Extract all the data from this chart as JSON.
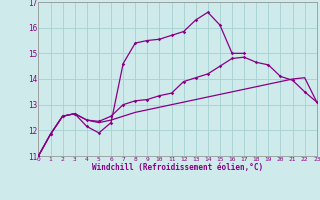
{
  "xlabel": "Windchill (Refroidissement éolien,°C)",
  "background_color": "#ceeaea",
  "grid_color": "#aad4d4",
  "line_color": "#880088",
  "x_values": [
    0,
    1,
    2,
    3,
    4,
    5,
    6,
    7,
    8,
    9,
    10,
    11,
    12,
    13,
    14,
    15,
    16,
    17,
    18,
    19,
    20,
    21,
    22,
    23
  ],
  "line_bottom": [
    11.0,
    11.85,
    12.55,
    12.65,
    12.4,
    12.3,
    12.4,
    12.55,
    12.7,
    12.8,
    12.9,
    13.0,
    13.1,
    13.2,
    13.3,
    13.4,
    13.5,
    13.6,
    13.7,
    13.8,
    13.9,
    14.0,
    14.05,
    13.1
  ],
  "line_mid": [
    11.0,
    11.85,
    12.55,
    12.65,
    12.4,
    12.35,
    12.55,
    13.0,
    13.15,
    13.2,
    13.35,
    13.45,
    13.9,
    14.05,
    14.2,
    14.5,
    14.8,
    14.85,
    14.65,
    14.55,
    14.1,
    13.95,
    13.5,
    13.1
  ],
  "line_top": [
    11.0,
    11.85,
    12.55,
    12.65,
    12.15,
    11.9,
    12.3,
    14.6,
    15.4,
    15.5,
    15.55,
    15.7,
    15.85,
    16.3,
    16.6,
    16.1,
    15.0,
    15.0,
    null,
    null,
    null,
    null,
    null,
    null
  ],
  "ylim_min": 11,
  "ylim_max": 17,
  "xlim_min": 0,
  "xlim_max": 23,
  "yticks": [
    11,
    12,
    13,
    14,
    15,
    16,
    17
  ],
  "xticks": [
    0,
    1,
    2,
    3,
    4,
    5,
    6,
    7,
    8,
    9,
    10,
    11,
    12,
    13,
    14,
    15,
    16,
    17,
    18,
    19,
    20,
    21,
    22,
    23
  ]
}
